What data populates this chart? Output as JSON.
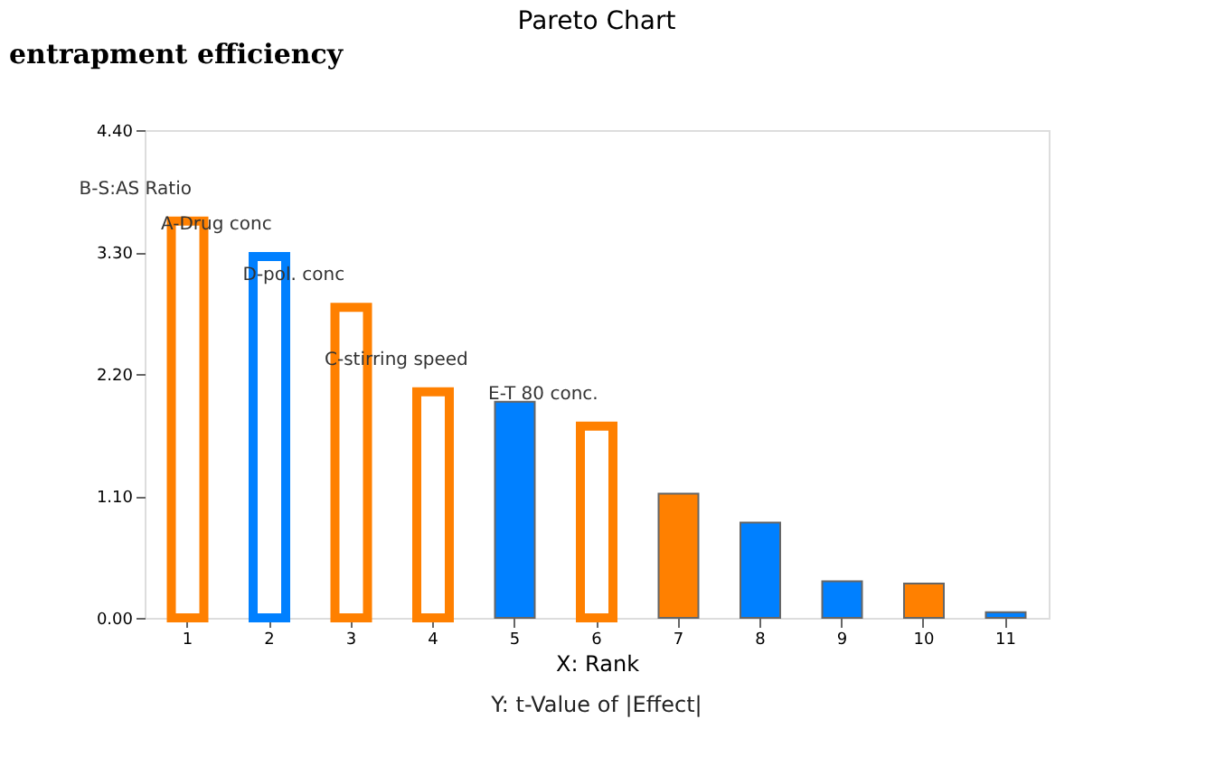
{
  "chart_data": {
    "type": "bar",
    "title": "Pareto Chart",
    "xlabel": "X: Rank",
    "categories": [
      "1",
      "2",
      "3",
      "4",
      "5",
      "6",
      "7",
      "8",
      "9",
      "10",
      "11"
    ],
    "series": [
      {
        "colors": [
          "#ff8000",
          "#0080ff",
          "#ff8000",
          "#ff8000",
          null,
          "#ff8000",
          null,
          null,
          null,
          null,
          null
        ],
        "values": [
          3.58,
          3.26,
          2.8,
          2.04,
          null,
          1.73,
          null,
          null,
          null,
          null,
          null
        ]
      },
      {
        "colors": [
          null,
          null,
          null,
          null,
          "#0080ff",
          null,
          "#ff8000",
          "#0080ff",
          "#0080ff",
          "#ff8000",
          "#0080ff"
        ],
        "values": [
          null,
          null,
          null,
          null,
          1.95,
          null,
          1.12,
          0.86,
          0.33,
          0.31,
          0.05
        ]
      }
    ],
    "ylim": [
      0,
      4.4
    ],
    "yticks": [
      {
        "value": 0,
        "label": "0.00"
      },
      {
        "value": 1.1,
        "label": "1.10"
      },
      {
        "value": 2.2,
        "label": "2.20"
      },
      {
        "value": 3.3,
        "label": "3.30"
      },
      {
        "value": 4.4,
        "label": "4.40"
      }
    ],
    "grid": false,
    "annotations": [
      {
        "text": "B-S:AS Ratio",
        "x": "1",
        "y": 3.58
      },
      {
        "text": "A-Drug conc",
        "x": "2",
        "y": 3.26
      },
      {
        "text": "D-pol. conc",
        "x": "3",
        "y": 2.8
      },
      {
        "text": "C-stirring speed",
        "x": "4",
        "y": 2.04
      },
      {
        "text": "E-T 80 conc.",
        "x": "6",
        "y": 1.73
      },
      "Y: t-Value of |Effect|",
      "entrapment efficiency"
    ]
  }
}
